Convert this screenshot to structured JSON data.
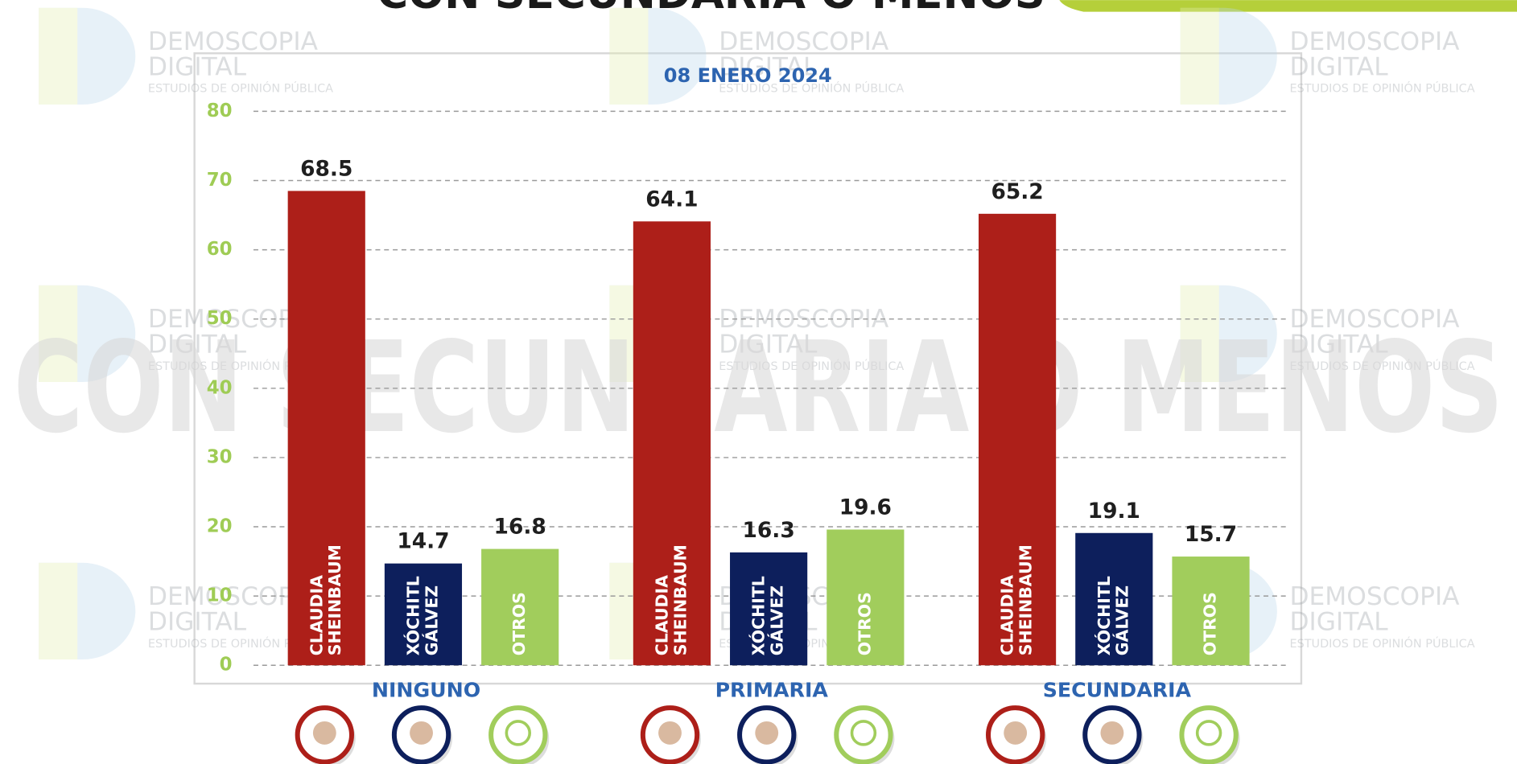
{
  "chart_data": {
    "type": "bar",
    "title": "CON SECUNDARIA O MENOS",
    "subtitle": "08 ENERO 2024",
    "watermark": {
      "brand": "DEMOSCOPIA",
      "brand2": "DIGITAL",
      "tagline": "ESTUDIOS DE OPINIÓN PÚBLICA"
    },
    "categories": [
      "NINGUNO",
      "PRIMARIA",
      "SECUNDARIA"
    ],
    "series": [
      {
        "name": "CLAUDIA SHEINBAUM",
        "color": "#ad1f19",
        "values": [
          68.5,
          64.1,
          65.2
        ]
      },
      {
        "name": "XÓCHITL GÁLVEZ",
        "color": "#0d1f5c",
        "values": [
          14.7,
          16.3,
          19.1
        ]
      },
      {
        "name": "OTROS",
        "color": "#a1cd5c",
        "values": [
          16.8,
          19.6,
          15.7
        ]
      }
    ],
    "ylim": [
      0,
      80
    ],
    "yticks": [
      0,
      10,
      20,
      30,
      40,
      50,
      60,
      70,
      80
    ],
    "grid": true
  }
}
